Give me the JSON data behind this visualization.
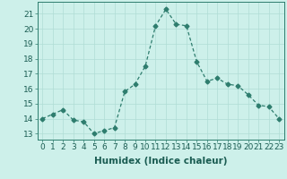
{
  "x": [
    0,
    1,
    2,
    3,
    4,
    5,
    6,
    7,
    8,
    9,
    10,
    11,
    12,
    13,
    14,
    15,
    16,
    17,
    18,
    19,
    20,
    21,
    22,
    23
  ],
  "y": [
    14.0,
    14.3,
    14.6,
    13.9,
    13.8,
    13.0,
    13.2,
    13.4,
    15.8,
    16.3,
    17.5,
    20.2,
    21.3,
    20.3,
    20.2,
    17.8,
    16.5,
    16.7,
    16.3,
    16.2,
    15.6,
    14.9,
    14.8,
    14.0
  ],
  "line_color": "#2e7d6e",
  "marker": "D",
  "marker_size": 2.5,
  "bg_color": "#cdf0ea",
  "grid_color": "#b0ddd5",
  "xlabel": "Humidex (Indice chaleur)",
  "ylabel_ticks": [
    13,
    14,
    15,
    16,
    17,
    18,
    19,
    20,
    21
  ],
  "xlim": [
    -0.5,
    23.5
  ],
  "ylim": [
    12.6,
    21.8
  ],
  "xlabel_fontsize": 7.5,
  "tick_fontsize": 6.5
}
